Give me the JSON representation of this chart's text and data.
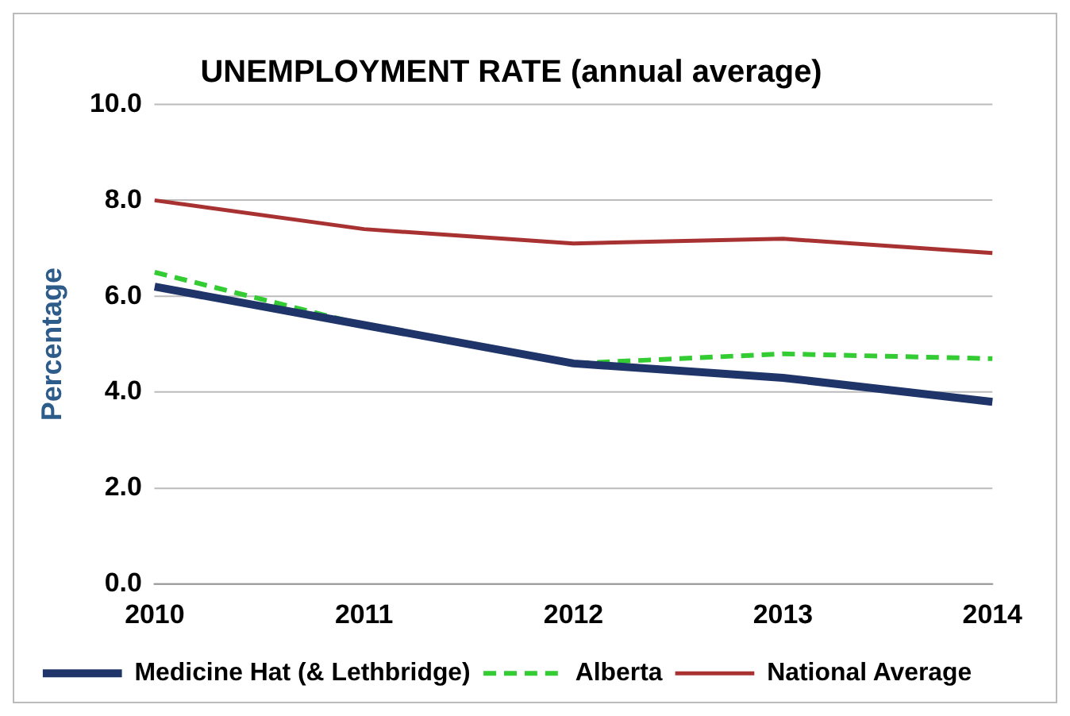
{
  "chart_data": {
    "type": "line",
    "title": "UNEMPLOYMENT RATE (annual average)",
    "ylabel": "Percentage",
    "categories": [
      "2010",
      "2011",
      "2012",
      "2013",
      "2014"
    ],
    "series": [
      {
        "name": "Medicine Hat (& Lethbridge)",
        "color": "#1f3468",
        "values": [
          6.2,
          5.4,
          4.6,
          4.3,
          3.8
        ],
        "line_style": "solid"
      },
      {
        "name": "Alberta",
        "color": "#33cc33",
        "values": [
          6.5,
          5.4,
          4.6,
          4.8,
          4.7
        ],
        "line_style": "dashed"
      },
      {
        "name": "National Average",
        "color": "#a83232",
        "values": [
          8.0,
          7.4,
          7.1,
          7.2,
          6.9
        ],
        "line_style": "solid"
      }
    ],
    "ylim": [
      0,
      10
    ],
    "yticks": [
      {
        "value": 0,
        "label": "0.0"
      },
      {
        "value": 2,
        "label": "2.0"
      },
      {
        "value": 4,
        "label": "4.0"
      },
      {
        "value": 6,
        "label": "6.0"
      },
      {
        "value": 8,
        "label": "8.0"
      },
      {
        "value": 10,
        "label": "10.0"
      }
    ],
    "grid": "y",
    "legend": "bottom",
    "marker": "none"
  }
}
